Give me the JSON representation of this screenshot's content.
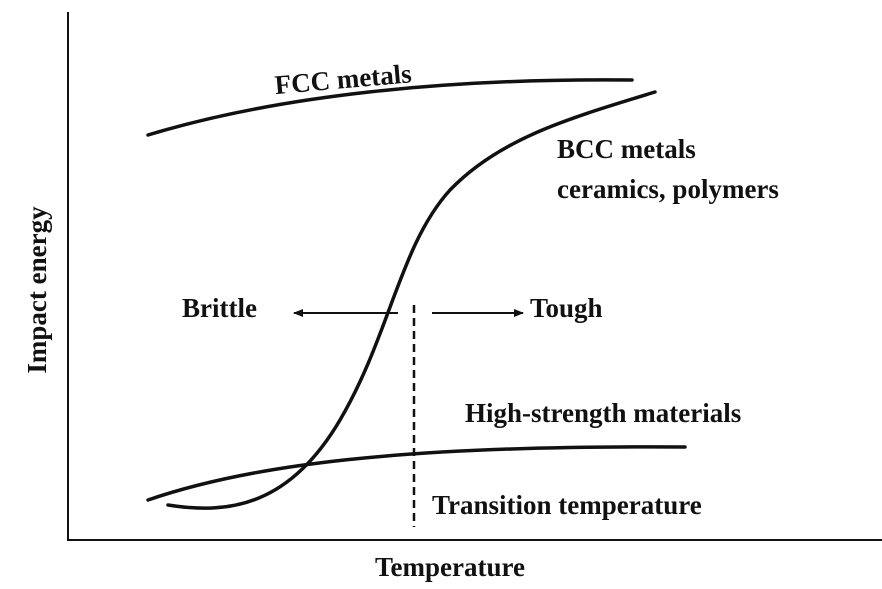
{
  "axes": {
    "y_label": "Impact energy",
    "x_label": "Temperature"
  },
  "curves": [
    {
      "lines": [
        "FCC metals"
      ]
    },
    {
      "lines": [
        "BCC metals",
        "ceramics, polymers"
      ]
    },
    {
      "lines": [
        "High-strength materials"
      ]
    }
  ],
  "annotations": {
    "left": "Brittle",
    "right": "Tough",
    "transition": "Transition temperature"
  }
}
